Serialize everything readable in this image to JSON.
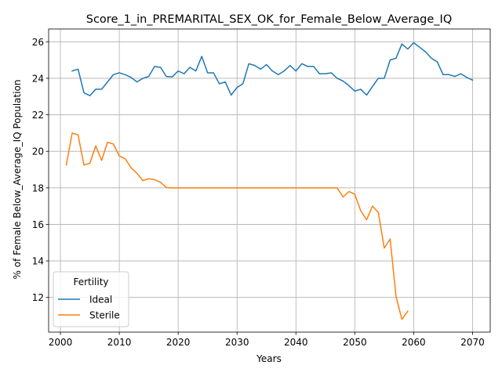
{
  "chart_data": {
    "type": "line",
    "title": "Score_1_in_PREMARITAL_SEX_OK_for_Female_Below_Average_IQ",
    "xlabel": "Years",
    "ylabel": "% of Female Below_Average_IQ Population",
    "xlim": [
      1998,
      2073
    ],
    "ylim": [
      10.1,
      26.7
    ],
    "xticks": [
      2000,
      2010,
      2020,
      2030,
      2040,
      2050,
      2060,
      2070
    ],
    "yticks": [
      12,
      14,
      16,
      18,
      20,
      22,
      24,
      26
    ],
    "grid": true,
    "legend": {
      "title": "Fertility",
      "placement": "lower-left"
    },
    "series": [
      {
        "name": "Ideal",
        "color": "#1f77b4",
        "x": [
          2002,
          2003,
          2004,
          2005,
          2006,
          2007,
          2008,
          2009,
          2010,
          2011,
          2012,
          2013,
          2014,
          2015,
          2016,
          2017,
          2018,
          2019,
          2020,
          2021,
          2022,
          2023,
          2024,
          2025,
          2026,
          2027,
          2028,
          2029,
          2030,
          2031,
          2032,
          2033,
          2034,
          2035,
          2036,
          2037,
          2038,
          2039,
          2040,
          2041,
          2042,
          2043,
          2044,
          2045,
          2046,
          2047,
          2048,
          2049,
          2050,
          2051,
          2052,
          2053,
          2054,
          2055,
          2056,
          2057,
          2058,
          2059,
          2060,
          2061,
          2062,
          2063,
          2064,
          2065,
          2066,
          2067,
          2068,
          2069,
          2070
        ],
        "y": [
          24.4,
          24.5,
          23.2,
          23.05,
          23.4,
          23.4,
          23.8,
          24.2,
          24.3,
          24.2,
          24.05,
          23.8,
          24.0,
          24.1,
          24.65,
          24.6,
          24.1,
          24.08,
          24.4,
          24.25,
          24.6,
          24.4,
          25.2,
          24.3,
          24.3,
          23.7,
          23.8,
          23.08,
          23.5,
          23.7,
          24.8,
          24.7,
          24.5,
          24.75,
          24.4,
          24.2,
          24.4,
          24.7,
          24.4,
          24.8,
          24.65,
          24.65,
          24.25,
          24.25,
          24.3,
          24.0,
          23.85,
          23.6,
          23.3,
          23.4,
          23.08,
          23.55,
          24.0,
          24.0,
          25.0,
          25.1,
          25.88,
          25.6,
          25.95,
          25.7,
          25.45,
          25.1,
          24.9,
          24.2,
          24.2,
          24.1,
          24.25,
          24.05,
          23.9
        ]
      },
      {
        "name": "Sterile",
        "color": "#ff7f0e",
        "x": [
          2001,
          2002,
          2003,
          2004,
          2005,
          2006,
          2007,
          2008,
          2009,
          2010,
          2011,
          2012,
          2013,
          2014,
          2015,
          2016,
          2017,
          2018,
          2019,
          2020,
          2021,
          2022,
          2023,
          2024,
          2025,
          2026,
          2027,
          2028,
          2029,
          2030,
          2031,
          2032,
          2033,
          2034,
          2035,
          2036,
          2037,
          2038,
          2039,
          2040,
          2041,
          2042,
          2043,
          2044,
          2045,
          2046,
          2047,
          2048,
          2049,
          2050,
          2051,
          2052,
          2053,
          2054,
          2055,
          2056,
          2057,
          2058,
          2059
        ],
        "y": [
          19.25,
          21.0,
          20.9,
          19.25,
          19.35,
          20.3,
          19.5,
          20.5,
          20.4,
          19.75,
          19.6,
          19.1,
          18.8,
          18.4,
          18.5,
          18.45,
          18.3,
          18.02,
          18.0,
          18.0,
          18.0,
          18.0,
          18.0,
          18.0,
          18.0,
          18.0,
          18.0,
          18.0,
          18.0,
          18.0,
          18.0,
          18.0,
          18.0,
          18.0,
          18.0,
          18.0,
          18.0,
          18.0,
          18.0,
          18.0,
          18.0,
          18.0,
          18.0,
          18.0,
          18.0,
          18.0,
          18.0,
          17.5,
          17.8,
          17.65,
          16.75,
          16.25,
          17.0,
          16.65,
          14.7,
          15.2,
          12.05,
          10.8,
          11.25
        ]
      }
    ]
  }
}
